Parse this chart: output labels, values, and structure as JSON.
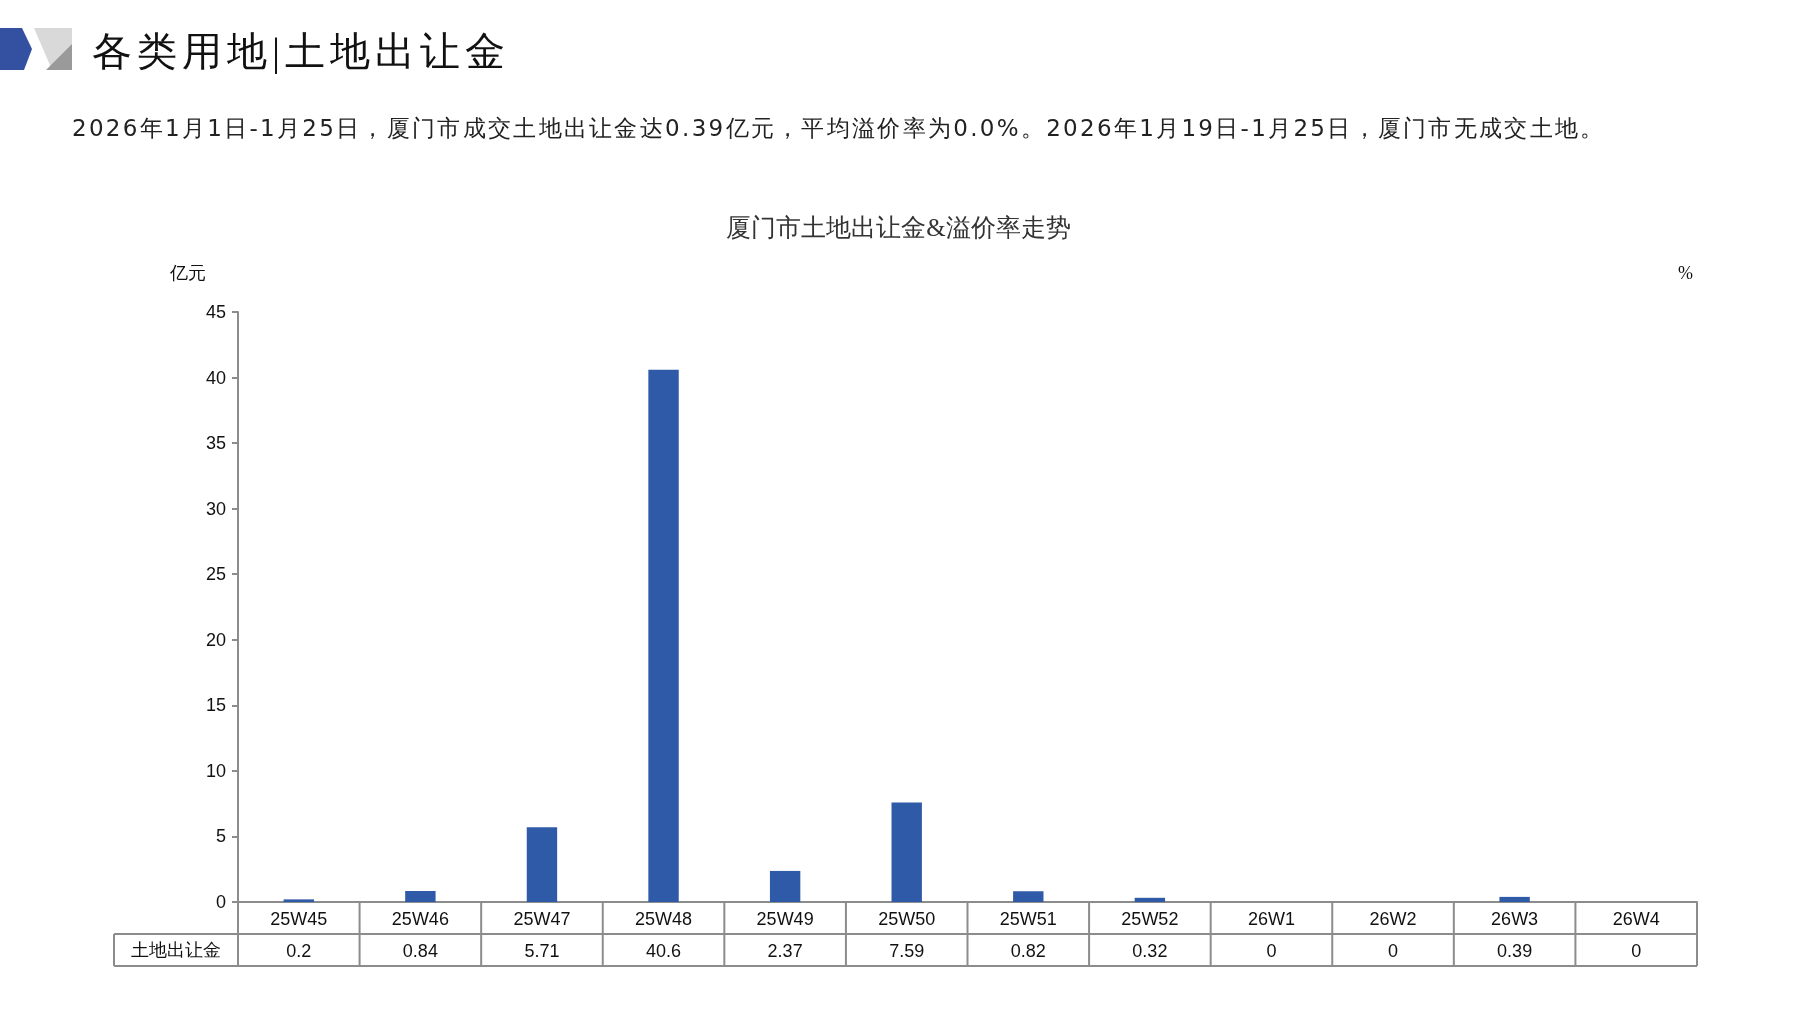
{
  "chart_data": {
    "type": "bar",
    "title": "厦门市土地出让金&溢价率走势",
    "ylabel": "亿元",
    "y2label": "%",
    "annotations": [
      "各类用地|土地出让金",
      "2026年1月1日-1月25日，厦门市成交土地出让金达0.39亿元，平均溢价率为0.0%。2026年1月19日-1月25日，厦门市无成交土地。"
    ],
    "categories": [
      "25W45",
      "25W46",
      "25W47",
      "25W48",
      "25W49",
      "25W50",
      "25W51",
      "25W52",
      "26W1",
      "26W2",
      "26W3",
      "26W4"
    ],
    "series": [
      {
        "name": "土地出让金",
        "color": "#2e5aa8",
        "values": [
          0.2,
          0.84,
          5.71,
          40.6,
          2.37,
          7.59,
          0.82,
          0.32,
          0,
          0,
          0.39,
          0
        ]
      }
    ],
    "ylim": [
      0,
      45
    ],
    "yticks": [
      0,
      5,
      10,
      15,
      20,
      25,
      30,
      35,
      40,
      45
    ],
    "grid": false,
    "data_labels": true
  }
}
